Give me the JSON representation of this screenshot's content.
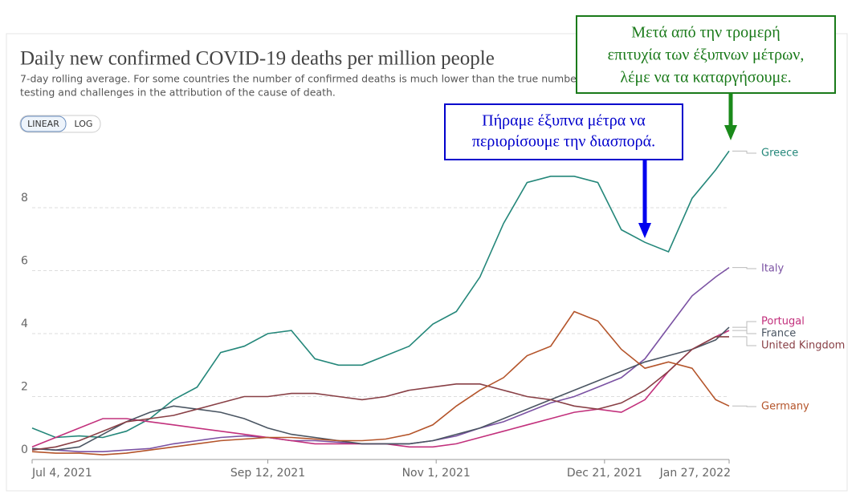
{
  "chart_data": {
    "type": "line",
    "title": "Daily new confirmed COVID-19 deaths per million people",
    "subtitle": [
      "7-day rolling average. For some countries the number of confirmed deaths is much lower than the true number of",
      "testing and challenges in the attribution of the cause of death."
    ],
    "buttons": [
      "LINEAR",
      "LOG"
    ],
    "log_scale": false,
    "grid": true,
    "x": [
      "2021-07-04",
      "2021-07-11",
      "2021-07-18",
      "2021-07-25",
      "2021-08-01",
      "2021-08-08",
      "2021-08-15",
      "2021-08-22",
      "2021-08-29",
      "2021-09-05",
      "2021-09-12",
      "2021-09-19",
      "2021-09-26",
      "2021-10-03",
      "2021-10-10",
      "2021-10-17",
      "2021-10-24",
      "2021-10-31",
      "2021-11-07",
      "2021-11-14",
      "2021-11-21",
      "2021-11-28",
      "2021-12-05",
      "2021-12-12",
      "2021-12-19",
      "2021-12-26",
      "2022-01-02",
      "2022-01-09",
      "2022-01-16",
      "2022-01-23",
      "2022-01-27"
    ],
    "xlim": [
      "2021-07-04",
      "2022-01-27"
    ],
    "xticks": [
      {
        "value": "2021-07-04",
        "label": "Jul 4, 2021"
      },
      {
        "value": "2021-09-12",
        "label": "Sep 12, 2021"
      },
      {
        "value": "2021-11-01",
        "label": "Nov 1, 2021"
      },
      {
        "value": "2021-12-21",
        "label": "Dec 21, 2021"
      },
      {
        "value": "2022-01-27",
        "label": "Jan 27, 2022"
      }
    ],
    "ylim": [
      0,
      10
    ],
    "yticks": [
      0,
      2,
      4,
      6,
      8
    ],
    "series": [
      {
        "name": "Greece",
        "color": "#24877a",
        "values": [
          1.0,
          0.7,
          0.75,
          0.7,
          0.9,
          1.3,
          1.9,
          2.3,
          3.4,
          3.6,
          4.0,
          4.1,
          3.2,
          3.0,
          3.0,
          3.3,
          3.6,
          4.3,
          4.7,
          5.8,
          7.5,
          8.8,
          9.0,
          9.0,
          8.8,
          7.3,
          6.9,
          6.6,
          8.3,
          9.2,
          9.8
        ]
      },
      {
        "name": "Italy",
        "color": "#7b52a3",
        "values": [
          0.35,
          0.3,
          0.25,
          0.25,
          0.3,
          0.35,
          0.5,
          0.6,
          0.7,
          0.75,
          0.7,
          0.6,
          0.6,
          0.55,
          0.5,
          0.5,
          0.5,
          0.6,
          0.75,
          1.0,
          1.2,
          1.5,
          1.8,
          2.0,
          2.3,
          2.6,
          3.2,
          4.2,
          5.2,
          5.8,
          6.1
        ]
      },
      {
        "name": "Portugal",
        "color": "#c2307c",
        "values": [
          0.4,
          0.7,
          1.0,
          1.3,
          1.3,
          1.2,
          1.1,
          1.0,
          0.9,
          0.8,
          0.7,
          0.6,
          0.5,
          0.5,
          0.5,
          0.5,
          0.4,
          0.4,
          0.5,
          0.7,
          0.9,
          1.1,
          1.3,
          1.5,
          1.6,
          1.5,
          1.9,
          2.8,
          3.5,
          3.9,
          4.1
        ]
      },
      {
        "name": "France",
        "color": "#4a5562",
        "values": [
          0.35,
          0.3,
          0.4,
          0.8,
          1.2,
          1.5,
          1.7,
          1.6,
          1.5,
          1.3,
          1.0,
          0.8,
          0.7,
          0.6,
          0.5,
          0.5,
          0.5,
          0.6,
          0.8,
          1.0,
          1.3,
          1.6,
          1.9,
          2.2,
          2.5,
          2.8,
          3.1,
          3.3,
          3.5,
          3.8,
          4.2
        ]
      },
      {
        "name": "United Kingdom",
        "color": "#883f45",
        "values": [
          0.3,
          0.4,
          0.6,
          0.9,
          1.2,
          1.3,
          1.4,
          1.6,
          1.8,
          2.0,
          2.0,
          2.1,
          2.1,
          2.0,
          1.9,
          2.0,
          2.2,
          2.3,
          2.4,
          2.4,
          2.2,
          2.0,
          1.9,
          1.7,
          1.6,
          1.8,
          2.2,
          2.8,
          3.5,
          3.9,
          3.9
        ]
      },
      {
        "name": "Germany",
        "color": "#b4542a",
        "values": [
          0.25,
          0.2,
          0.2,
          0.15,
          0.2,
          0.3,
          0.4,
          0.5,
          0.6,
          0.65,
          0.7,
          0.7,
          0.65,
          0.6,
          0.6,
          0.65,
          0.8,
          1.1,
          1.7,
          2.2,
          2.6,
          3.3,
          3.6,
          4.7,
          4.4,
          3.5,
          2.9,
          3.1,
          2.9,
          1.9,
          1.7
        ]
      }
    ],
    "annotations": [
      {
        "lines": [
          "Πήραμε έξυπνα μέτρα να",
          "περιορίσουμε την διασπορά."
        ]
      },
      {
        "lines": [
          "Μετά από την τρομερή",
          "επιτυχία των έξυπνων μέτρων,",
          "λέμε να τα καταργήσουμε."
        ]
      }
    ]
  }
}
